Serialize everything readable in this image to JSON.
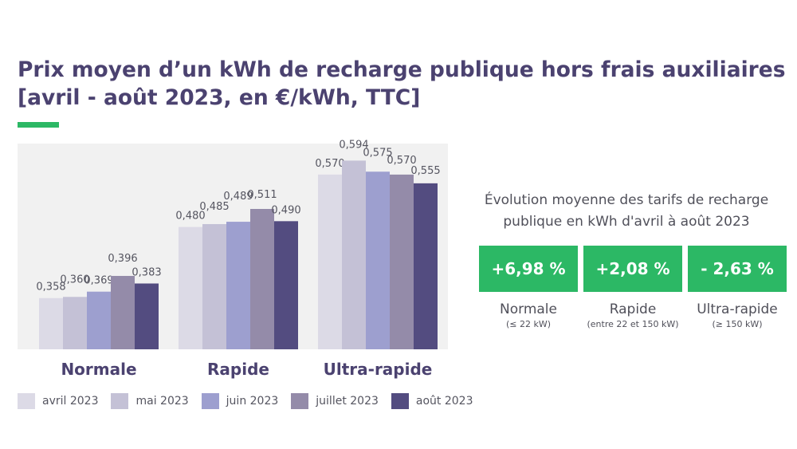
{
  "title": {
    "line1": "Prix moyen d’un kWh de recharge publique hors frais auxiliaires",
    "line2": "[avril - août 2023, en €/kWh, TTC]"
  },
  "colors": {
    "title": "#4b4270",
    "accent": "#2cb865",
    "series": [
      "#dcdae6",
      "#c4c1d6",
      "#9d9fcf",
      "#948ba9",
      "#534c80"
    ]
  },
  "chart_data": {
    "type": "bar",
    "categories": [
      "Normale",
      "Rapide",
      "Ultra-rapide"
    ],
    "series": [
      {
        "name": "avril 2023",
        "values": [
          0.358,
          0.48,
          0.57
        ],
        "labels": [
          "0,358",
          "0,480",
          "0,570"
        ]
      },
      {
        "name": "mai 2023",
        "values": [
          0.36,
          0.485,
          0.594
        ],
        "labels": [
          "0,360",
          "0,485",
          "0,594"
        ]
      },
      {
        "name": "juin 2023",
        "values": [
          0.369,
          0.489,
          0.575
        ],
        "labels": [
          "0,369",
          "0,489",
          "0,575"
        ]
      },
      {
        "name": "juillet 2023",
        "values": [
          0.396,
          0.511,
          0.57
        ],
        "labels": [
          "0,396",
          "0,511",
          "0,570"
        ]
      },
      {
        "name": "août 2023",
        "values": [
          0.383,
          0.49,
          0.555
        ],
        "labels": [
          "0,383",
          "0,490",
          "0,555"
        ]
      }
    ],
    "ylim": [
      0.27,
      0.6
    ],
    "legend": "bottom"
  },
  "evolution": {
    "heading_line1": "Évolution moyenne des tarifs de recharge",
    "heading_line2": "publique en kWh d'avril à août 2023",
    "items": [
      {
        "value": "+6,98 %",
        "name": "Normale",
        "range": "(≤ 22 kW)"
      },
      {
        "value": "+2,08 %",
        "name": "Rapide",
        "range": "(entre 22 et 150 kW)"
      },
      {
        "value": "- 2,63 %",
        "name": "Ultra-rapide",
        "range": "(≥ 150 kW)"
      }
    ]
  }
}
